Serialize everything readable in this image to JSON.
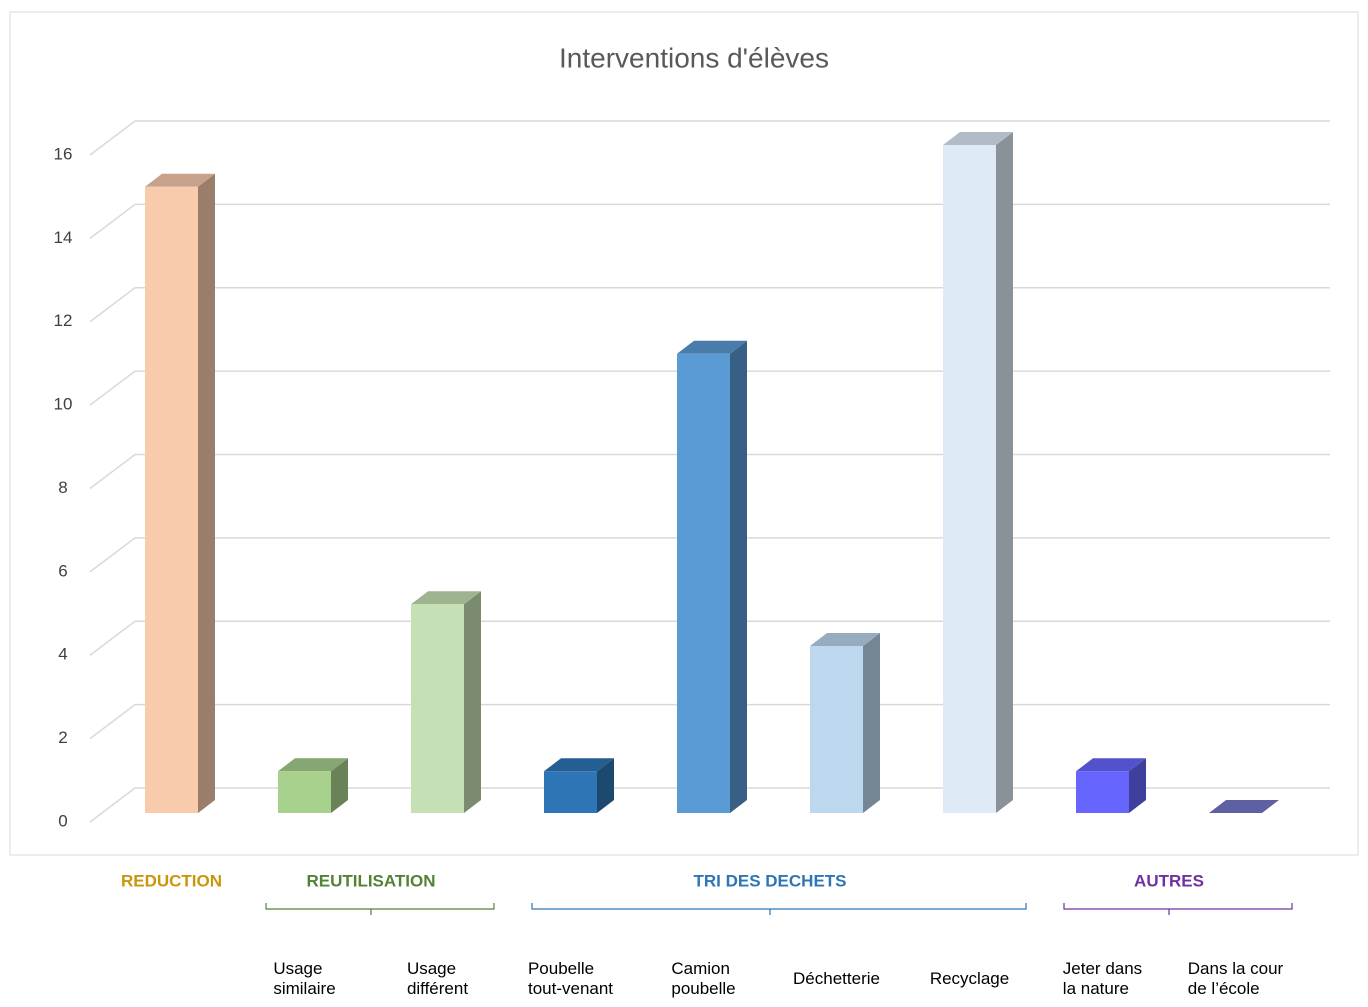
{
  "chart_data": {
    "type": "bar3d",
    "title": "Interventions d'élèves",
    "categories": [
      null,
      "Usage\nsimilaire",
      "Usage\ndifférent",
      "Poubelle\ntout-venant",
      "Camion\npoubelle",
      "Déchetterie",
      "Recyclage",
      "Jeter dans\nla nature",
      "Dans la cour\nde l’école"
    ],
    "values": [
      15,
      1,
      5,
      1,
      11,
      4,
      16,
      1,
      0
    ],
    "colors": [
      "#f8cbad",
      "#a9d18e",
      "#c5e0b4",
      "#2e75b6",
      "#5b9bd5",
      "#bdd7ee",
      "#deebf7",
      "#6666ff",
      "#7777cc"
    ],
    "groups": [
      {
        "name": "REDUCTION",
        "color": "#c9960c",
        "span": [
          0,
          0
        ]
      },
      {
        "name": "REUTILISATION",
        "color": "#538135",
        "span": [
          1,
          2
        ]
      },
      {
        "name": "TRI DES DECHETS",
        "color": "#2e75b6",
        "span": [
          3,
          6
        ]
      },
      {
        "name": "AUTRES",
        "color": "#7030a0",
        "span": [
          7,
          8
        ]
      }
    ],
    "ylim": [
      0,
      16
    ],
    "yticks": [
      0,
      2,
      4,
      6,
      8,
      10,
      12,
      14,
      16
    ],
    "grid": true
  }
}
